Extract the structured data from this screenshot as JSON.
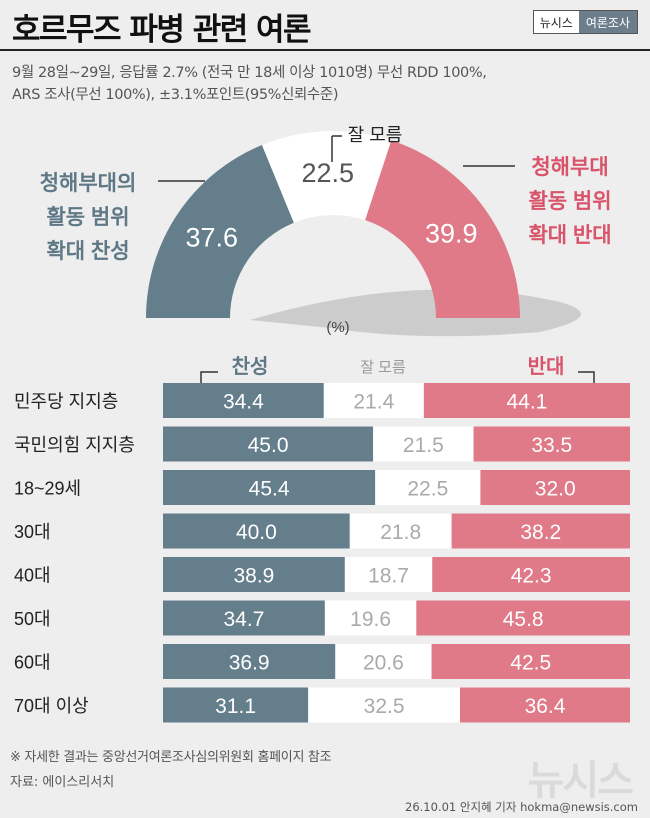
{
  "header": {
    "title": "호르무즈 파병 관련 여론",
    "badge_left": "뉴시스",
    "badge_right": "여론조사"
  },
  "survey": {
    "line1": "9월 28일~29일, 응답률 2.7% (전국 만 18세 이상 1010명) 무선 RDD 100%,",
    "line2": "ARS 조사(무선 100%), ±3.1%포인트(95%신뢰수준)"
  },
  "colors": {
    "favor": "#647e8c",
    "unknown": "#ffffff",
    "oppose": "#e07a88",
    "favor_text": "#5e7886",
    "oppose_text": "#d9536a"
  },
  "chart_data": [
    {
      "type": "pie",
      "variant": "half-donut",
      "unit_label": "(%)",
      "slices": [
        {
          "label_lines": [
            "청해부대의",
            "활동 범위",
            "확대 찬성"
          ],
          "value": 37.6,
          "value_label": "37.6"
        },
        {
          "label_lines": [
            "잘 모름"
          ],
          "value": 22.5,
          "value_label": "22.5"
        },
        {
          "label_lines": [
            "청해부대",
            "활동 범위",
            "확대 반대"
          ],
          "value": 39.9,
          "value_label": "39.9"
        }
      ]
    },
    {
      "type": "bar",
      "orientation": "horizontal",
      "stacked": true,
      "categories": [
        "민주당 지지층",
        "국민의힘 지지층",
        "18~29세",
        "30대",
        "40대",
        "50대",
        "60대",
        "70대 이상"
      ],
      "series": [
        {
          "name": "찬성",
          "values": [
            34.4,
            45.0,
            45.4,
            40.0,
            38.9,
            34.7,
            36.9,
            31.1
          ],
          "labels": [
            "34.4",
            "45.0",
            "45.4",
            "40.0",
            "38.9",
            "34.7",
            "36.9",
            "31.1"
          ]
        },
        {
          "name": "잘 모름",
          "values": [
            21.4,
            21.5,
            22.5,
            21.8,
            18.7,
            19.6,
            20.6,
            32.5
          ],
          "labels": [
            "21.4",
            "21.5",
            "22.5",
            "21.8",
            "18.7",
            "19.6",
            "20.6",
            "32.5"
          ]
        },
        {
          "name": "반대",
          "values": [
            44.1,
            33.5,
            32.0,
            38.2,
            42.3,
            45.8,
            42.5,
            36.4
          ],
          "labels": [
            "44.1",
            "33.5",
            "32.0",
            "38.2",
            "42.3",
            "45.8",
            "42.5",
            "36.4"
          ]
        }
      ]
    }
  ],
  "footer": {
    "note": "※ 자세한 결과는 중앙선거여론조사심의위원회 홈페이지 참조",
    "source": "자료: 에이스리서치",
    "watermark": "뉴시스",
    "credit": "26.10.01 안지혜 기자 hokma@newsis.com"
  }
}
